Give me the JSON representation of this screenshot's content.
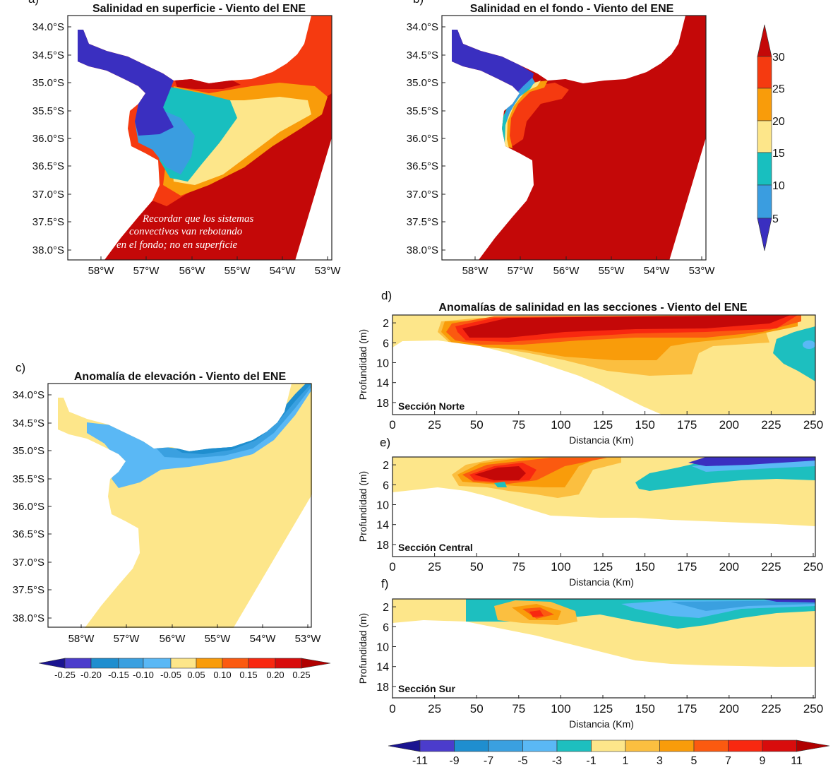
{
  "chart_data": [
    {
      "type": "heatmap",
      "panel_label": "a)",
      "title": "Salinidad en superficie - Viento del ENE",
      "y_ticks": [
        "34.0°S",
        "34.5°S",
        "35.0°S",
        "35.5°S",
        "36.0°S",
        "36.5°S",
        "37.0°S",
        "37.5°S",
        "38.0°S"
      ],
      "x_ticks": [
        "58°W",
        "57°W",
        "56°W",
        "55°W",
        "54°W",
        "53°W"
      ],
      "annotation": [
        "Recordar que los sistemas",
        "convectivos van rebotando",
        "en el fondo; no en superficie"
      ],
      "colorbar": "salinity"
    },
    {
      "type": "heatmap",
      "panel_label": "b)",
      "title": "Salinidad en el fondo - Viento del ENE",
      "y_ticks": [
        "34.0°S",
        "34.5°S",
        "35.0°S",
        "35.5°S",
        "36.0°S",
        "36.5°S",
        "37.0°S",
        "37.5°S",
        "38.0°S"
      ],
      "x_ticks": [
        "58°W",
        "57°W",
        "56°W",
        "55°W",
        "54°W",
        "53°W"
      ],
      "colorbar": "salinity"
    },
    {
      "type": "heatmap",
      "panel_label": "c)",
      "title": "Anomalía de elevación - Viento del ENE",
      "y_ticks": [
        "34.0°S",
        "34.5°S",
        "35.0°S",
        "35.5°S",
        "36.0°S",
        "36.5°S",
        "37.0°S",
        "37.5°S",
        "38.0°S"
      ],
      "x_ticks": [
        "58°W",
        "57°W",
        "56°W",
        "55°W",
        "54°W",
        "53°W"
      ],
      "colorbar": "elevation"
    },
    {
      "type": "heatmap",
      "panel_label": "d)",
      "title": "Anomalías de salinidad en las secciones - Viento del ENE",
      "section": "Sección Norte",
      "ylabel": "Profundidad (m)",
      "xlabel": "Distancia (Km)",
      "y_ticks": [
        "2",
        "6",
        "10",
        "14",
        "18"
      ],
      "x_ticks": [
        "0",
        "25",
        "50",
        "75",
        "100",
        "125",
        "150",
        "175",
        "200",
        "225",
        "250"
      ],
      "xlim": [
        0,
        250
      ],
      "colorbar": "anomaly"
    },
    {
      "type": "heatmap",
      "panel_label": "e)",
      "section": "Sección Central",
      "ylabel": "Profundidad (m)",
      "xlabel": "Distancia (Km)",
      "y_ticks": [
        "2",
        "6",
        "10",
        "14",
        "18"
      ],
      "x_ticks": [
        "0",
        "25",
        "50",
        "75",
        "100",
        "125",
        "150",
        "175",
        "200",
        "225",
        "250"
      ],
      "xlim": [
        0,
        250
      ],
      "colorbar": "anomaly"
    },
    {
      "type": "heatmap",
      "panel_label": "f)",
      "section": "Sección Sur",
      "ylabel": "Profundidad (m)",
      "xlabel": "Distancia (Km)",
      "y_ticks": [
        "2",
        "6",
        "10",
        "14",
        "18"
      ],
      "x_ticks": [
        "0",
        "25",
        "50",
        "75",
        "100",
        "125",
        "150",
        "175",
        "200",
        "225",
        "250"
      ],
      "xlim": [
        0,
        250
      ],
      "colorbar": "anomaly"
    }
  ],
  "colorbars": {
    "salinity": {
      "labels": [
        "30",
        "25",
        "20",
        "15",
        "10",
        "5"
      ],
      "colors": [
        "#c40808",
        "#f53a10",
        "#f99c0a",
        "#fde68a",
        "#18bfbf",
        "#3a9de0",
        "#3a2fc0"
      ]
    },
    "elevation": {
      "labels": [
        "-0.25",
        "-0.20",
        "-0.15",
        "-0.10",
        "-0.05",
        "0.05",
        "0.10",
        "0.15",
        "0.20",
        "0.25"
      ],
      "colors": [
        "#1a1490",
        "#4b3ccc",
        "#1f8ecf",
        "#3aa0e0",
        "#5ab8f5",
        "#fde68a",
        "#f99c0a",
        "#fb5a10",
        "#f82810",
        "#d80c0c",
        "#b00000"
      ]
    },
    "anomaly": {
      "labels": [
        "-11",
        "-9",
        "-7",
        "-5",
        "-3",
        "-1",
        "1",
        "3",
        "5",
        "7",
        "9",
        "11"
      ],
      "colors": [
        "#1a1490",
        "#4b3ccc",
        "#1f8ecf",
        "#3aa0e0",
        "#5ab8f5",
        "#1dbfbf",
        "#fde68a",
        "#fbbf40",
        "#f99c0a",
        "#fb5a10",
        "#f82810",
        "#d80c0c",
        "#b00000"
      ]
    }
  }
}
